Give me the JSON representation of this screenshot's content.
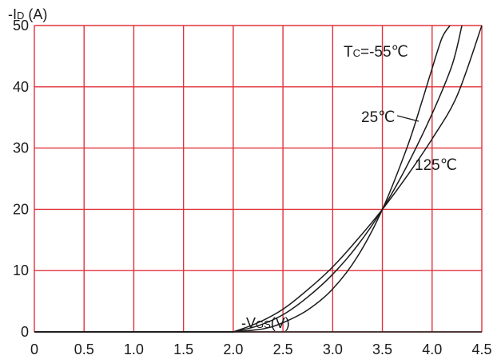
{
  "chart_data": {
    "type": "line",
    "ylabel": {
      "prefix": "-I",
      "sub": "D",
      "unit": " (A)"
    },
    "xlabel": {
      "prefix": "-V",
      "sub": "GS",
      "unit": "(V)"
    },
    "xlim": [
      0,
      4.5
    ],
    "ylim": [
      0,
      50
    ],
    "x_ticks": [
      "0",
      "0.5",
      "1.0",
      "1.5",
      "2.0",
      "2.5",
      "3.0",
      "3.5",
      "4.0",
      "4.5"
    ],
    "y_ticks": [
      "0",
      "10",
      "20",
      "30",
      "40",
      "50"
    ],
    "grid": true,
    "grid_color": "#e0323c",
    "line_color": "#1a1a1a",
    "series": [
      {
        "name": "TC=-55℃",
        "label": {
          "prefix": "T",
          "sub": "C",
          "rest": "=-55℃"
        },
        "x": [
          0,
          2.0,
          2.3,
          2.5,
          2.75,
          3.0,
          3.25,
          3.5,
          3.75,
          3.9,
          4.0,
          4.1,
          4.18
        ],
        "y": [
          0,
          0,
          0.5,
          1.5,
          3.6,
          7.0,
          12.3,
          20.0,
          30.2,
          37.7,
          43.0,
          48.0,
          50.0
        ]
      },
      {
        "name": "25℃",
        "label": {
          "prefix": "25℃",
          "sub": "",
          "rest": ""
        },
        "x": [
          0,
          2.0,
          2.25,
          2.5,
          2.75,
          3.0,
          3.25,
          3.5,
          3.75,
          4.0,
          4.2,
          4.3
        ],
        "y": [
          0,
          0,
          1.0,
          2.8,
          5.7,
          9.4,
          14.1,
          20.0,
          27.2,
          35.6,
          43.5,
          50.0
        ]
      },
      {
        "name": "125℃",
        "label": {
          "prefix": "125℃",
          "sub": "",
          "rest": ""
        },
        "x": [
          0,
          2.0,
          2.25,
          2.5,
          2.75,
          3.0,
          3.25,
          3.5,
          3.75,
          4.0,
          4.25,
          4.5
        ],
        "y": [
          0,
          0,
          1.5,
          3.7,
          6.9,
          10.6,
          15.1,
          20.0,
          25.5,
          31.5,
          38.5,
          50.0
        ]
      }
    ]
  }
}
